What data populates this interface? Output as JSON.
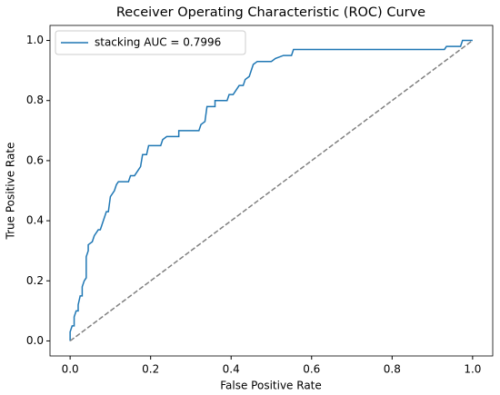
{
  "chart_data": {
    "type": "line",
    "title": "Receiver Operating Characteristic (ROC) Curve",
    "x_label": "False Positive Rate",
    "y_label": "True Positive Rate",
    "xlim": [
      -0.05,
      1.05
    ],
    "ylim": [
      -0.05,
      1.05
    ],
    "xticks": [
      {
        "value": 0,
        "label": "0.0"
      },
      {
        "value": 0.2,
        "label": "0.2"
      },
      {
        "value": 0.4,
        "label": "0.4"
      },
      {
        "value": 0.6,
        "label": "0.6"
      },
      {
        "value": 0.8,
        "label": "0.8"
      },
      {
        "value": 1,
        "label": "1.0"
      }
    ],
    "yticks": [
      {
        "value": 0,
        "label": "0.0"
      },
      {
        "value": 0.2,
        "label": "0.2"
      },
      {
        "value": 0.4,
        "label": "0.4"
      },
      {
        "value": 0.6,
        "label": "0.6"
      },
      {
        "value": 0.8,
        "label": "0.8"
      },
      {
        "value": 1,
        "label": "1.0"
      }
    ],
    "legend": "upper left",
    "series": [
      {
        "name": "stacking AUC = 0.7996",
        "color": "#1f77b4",
        "x": [
          0,
          0,
          0.005,
          0.01,
          0.01,
          0.015,
          0.02,
          0.02,
          0.025,
          0.03,
          0.03,
          0.035,
          0.04,
          0.04,
          0.045,
          0.045,
          0.055,
          0.06,
          0.07,
          0.075,
          0.08,
          0.085,
          0.09,
          0.095,
          0.1,
          0.11,
          0.115,
          0.12,
          0.145,
          0.15,
          0.16,
          0.17,
          0.175,
          0.18,
          0.19,
          0.195,
          0.225,
          0.23,
          0.24,
          0.27,
          0.27,
          0.32,
          0.325,
          0.335,
          0.34,
          0.36,
          0.36,
          0.39,
          0.395,
          0.405,
          0.41,
          0.42,
          0.43,
          0.435,
          0.445,
          0.45,
          0.455,
          0.465,
          0.5,
          0.51,
          0.53,
          0.55,
          0.555,
          0.93,
          0.935,
          0.97,
          0.975,
          1.0
        ],
        "values": [
          0,
          0.03,
          0.05,
          0.05,
          0.08,
          0.1,
          0.1,
          0.12,
          0.15,
          0.15,
          0.18,
          0.2,
          0.21,
          0.28,
          0.3,
          0.32,
          0.33,
          0.35,
          0.37,
          0.37,
          0.39,
          0.41,
          0.43,
          0.43,
          0.48,
          0.5,
          0.52,
          0.53,
          0.53,
          0.55,
          0.55,
          0.57,
          0.58,
          0.62,
          0.62,
          0.65,
          0.65,
          0.67,
          0.68,
          0.68,
          0.7,
          0.7,
          0.72,
          0.73,
          0.78,
          0.78,
          0.8,
          0.8,
          0.82,
          0.82,
          0.83,
          0.85,
          0.85,
          0.87,
          0.88,
          0.9,
          0.92,
          0.93,
          0.93,
          0.94,
          0.95,
          0.95,
          0.97,
          0.97,
          0.98,
          0.98,
          1.0,
          1.0
        ]
      },
      {
        "color": "#808080",
        "dash": true,
        "x": [
          0,
          1
        ],
        "values": [
          0,
          1
        ]
      }
    ]
  }
}
